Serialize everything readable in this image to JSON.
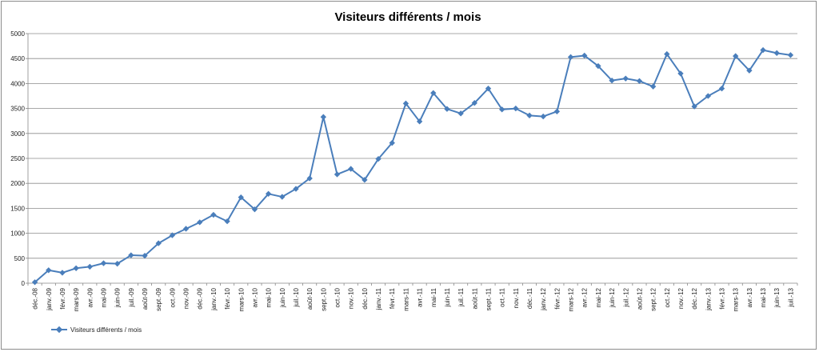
{
  "chart_data": {
    "type": "line",
    "title": "Visiteurs différents / mois",
    "xlabel": "",
    "ylabel": "",
    "ylim": [
      0,
      5000
    ],
    "yticks": [
      0,
      500,
      1000,
      1500,
      2000,
      2500,
      3000,
      3500,
      4000,
      4500,
      5000
    ],
    "grid": true,
    "legend_position": "bottom-left",
    "line_color": "#4a7ebb",
    "categories": [
      "déc.-08",
      "janv.-09",
      "févr.-09",
      "mars-09",
      "avr.-09",
      "mai-09",
      "juin-09",
      "juil.-09",
      "août-09",
      "sept.-09",
      "oct.-09",
      "nov.-09",
      "déc.-09",
      "janv.-10",
      "févr.-10",
      "mars-10",
      "avr.-10",
      "mai-10",
      "juin-10",
      "juil.-10",
      "août-10",
      "sept.-10",
      "oct.-10",
      "nov.-10",
      "déc.-10",
      "janv.-11",
      "févr.-11",
      "mars-11",
      "avr.-11",
      "mai-11",
      "juin-11",
      "juil.-11",
      "août-11",
      "sept.-11",
      "oct.-11",
      "nov.-11",
      "déc.-11",
      "janv.-12",
      "févr.-12",
      "mars-12",
      "avr.-12",
      "mai-12",
      "juin-12",
      "juil.-12",
      "août-12",
      "sept.-12",
      "oct.-12",
      "nov.-12",
      "déc.-12",
      "janv.-13",
      "févr.-13",
      "mars-13",
      "avr.-13",
      "mai-13",
      "juin-13",
      "juil.-13"
    ],
    "series": [
      {
        "name": "Visiteurs différents / mois",
        "values": [
          20,
          260,
          210,
          300,
          330,
          400,
          390,
          560,
          550,
          800,
          960,
          1090,
          1220,
          1370,
          1240,
          1720,
          1480,
          1790,
          1730,
          1890,
          2100,
          3330,
          2180,
          2290,
          2070,
          2490,
          2810,
          3600,
          3240,
          3810,
          3490,
          3400,
          3610,
          3900,
          3480,
          3500,
          3360,
          3340,
          3440,
          4530,
          4560,
          4350,
          4060,
          4100,
          4050,
          3940,
          4590,
          4200,
          3540,
          3750,
          3900,
          4550,
          4260,
          4670,
          4610,
          4570
        ]
      }
    ]
  }
}
